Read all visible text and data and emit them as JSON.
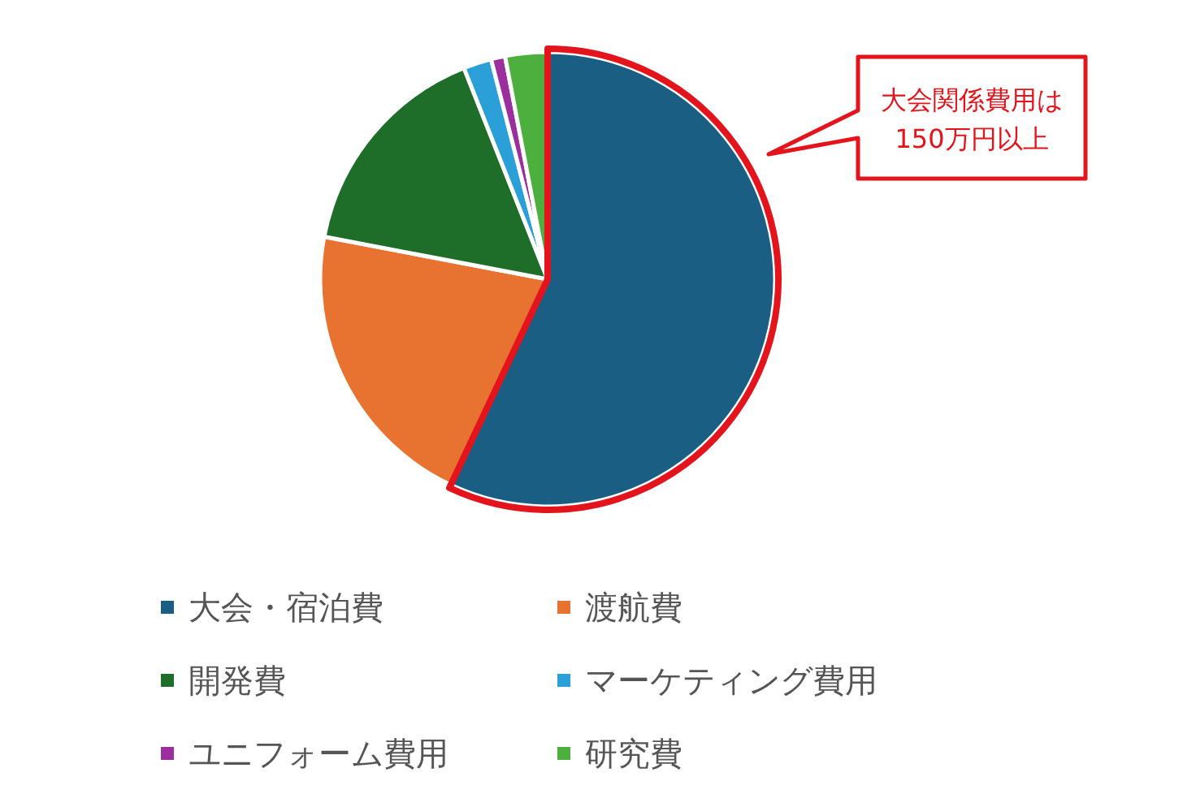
{
  "chart_data": {
    "type": "pie",
    "categories": [
      "大会・宿泊費",
      "渡航費",
      "開発費",
      "マーケティング費用",
      "ユニフォーム費用",
      "研究費"
    ],
    "values": [
      57,
      21,
      16,
      2,
      1,
      3
    ],
    "colors": [
      "#1b5e83",
      "#e87331",
      "#1e6e2a",
      "#2a9fd8",
      "#9b2f9b",
      "#4caf3e"
    ],
    "legend": "bottom",
    "annotations": [
      "大会関係費用は\n150万円以上"
    ]
  }
}
